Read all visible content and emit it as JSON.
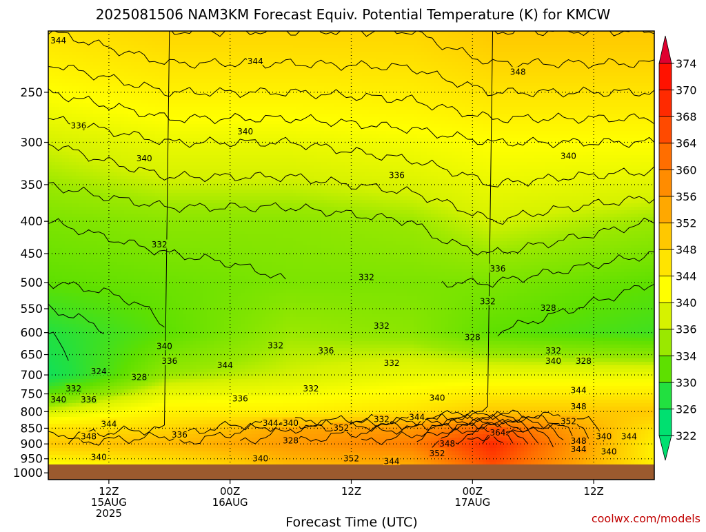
{
  "chart_data": {
    "type": "heatmap",
    "title": "2025081506 NAM3KM Forecast Equiv. Potential Temperature (K) for KMCW",
    "xlabel": "Forecast Time (UTC)",
    "credit": "coolwx.com/models",
    "x_range_hours": [
      6,
      66
    ],
    "x_ticks": [
      {
        "hour": 12,
        "lines": [
          "12Z",
          "15AUG",
          "2025"
        ]
      },
      {
        "hour": 24,
        "lines": [
          "00Z",
          "16AUG"
        ]
      },
      {
        "hour": 36,
        "lines": [
          "12Z"
        ]
      },
      {
        "hour": 48,
        "lines": [
          "00Z",
          "17AUG"
        ]
      },
      {
        "hour": 60,
        "lines": [
          "12Z"
        ]
      }
    ],
    "y_axis": {
      "scale": "log",
      "range_hPa": [
        1025,
        200
      ],
      "ticks": [
        250,
        300,
        350,
        400,
        450,
        500,
        550,
        600,
        650,
        700,
        750,
        800,
        850,
        900,
        950,
        1000
      ]
    },
    "surface_pressure_hPa": 970,
    "colorbar": {
      "ticks": [
        322,
        326,
        330,
        334,
        336,
        340,
        344,
        348,
        352,
        356,
        360,
        364,
        368,
        370,
        374
      ],
      "colors": [
        "#00e070",
        "#22e040",
        "#5ee000",
        "#9ae800",
        "#d6f200",
        "#ffff00",
        "#ffe400",
        "#ffc800",
        "#ffa800",
        "#ff8c00",
        "#ff6e00",
        "#ff4a00",
        "#ff2a00",
        "#ff1200",
        "#e00030"
      ],
      "cap_colors": {
        "low": "#00e070",
        "high": "#e00030"
      }
    },
    "profile_by_hour": [
      {
        "hour": 6,
        "theta_e": [
          344,
          336,
          332,
          330,
          326,
          324,
          336,
          344,
          348,
          340
        ]
      },
      {
        "hour": 18,
        "theta_e": [
          346,
          338,
          333,
          331,
          330,
          334,
          342,
          346,
          350,
          344
        ]
      },
      {
        "hour": 30,
        "theta_e": [
          346,
          338,
          333,
          332,
          334,
          336,
          342,
          352,
          354,
          350
        ]
      },
      {
        "hour": 42,
        "theta_e": [
          346,
          339,
          334,
          332,
          333,
          338,
          344,
          354,
          358,
          352
        ]
      },
      {
        "hour": 50,
        "theta_e": [
          348,
          340,
          336,
          332,
          330,
          338,
          348,
          362,
          368,
          364
        ]
      },
      {
        "hour": 66,
        "theta_e": [
          348,
          340,
          334,
          330,
          328,
          338,
          348,
          344,
          342,
          342
        ]
      }
    ],
    "profile_levels_hPa": [
      200,
      300,
      400,
      500,
      600,
      700,
      800,
      850,
      900,
      965
    ],
    "contour_labels": [
      {
        "text": "344",
        "hour": 7.0,
        "p": 207
      },
      {
        "text": "344",
        "hour": 26.5,
        "p": 223
      },
      {
        "text": "348",
        "hour": 52.5,
        "p": 232
      },
      {
        "text": "336",
        "hour": 9.0,
        "p": 282
      },
      {
        "text": "340",
        "hour": 25.5,
        "p": 288
      },
      {
        "text": "340",
        "hour": 15.5,
        "p": 318
      },
      {
        "text": "340",
        "hour": 57.5,
        "p": 315
      },
      {
        "text": "336",
        "hour": 40.5,
        "p": 338
      },
      {
        "text": "332",
        "hour": 17.0,
        "p": 435
      },
      {
        "text": "336",
        "hour": 50.5,
        "p": 475
      },
      {
        "text": "332",
        "hour": 37.5,
        "p": 490
      },
      {
        "text": "332",
        "hour": 49.5,
        "p": 535
      },
      {
        "text": "328",
        "hour": 55.5,
        "p": 548
      },
      {
        "text": "332",
        "hour": 39.0,
        "p": 585
      },
      {
        "text": "328",
        "hour": 48.0,
        "p": 610
      },
      {
        "text": "340",
        "hour": 17.5,
        "p": 630
      },
      {
        "text": "332",
        "hour": 28.5,
        "p": 628
      },
      {
        "text": "336",
        "hour": 33.5,
        "p": 640
      },
      {
        "text": "332",
        "hour": 56.0,
        "p": 640
      },
      {
        "text": "336",
        "hour": 18.0,
        "p": 665
      },
      {
        "text": "344",
        "hour": 23.5,
        "p": 675
      },
      {
        "text": "332",
        "hour": 40.0,
        "p": 670
      },
      {
        "text": "340",
        "hour": 56.0,
        "p": 665
      },
      {
        "text": "328",
        "hour": 59.0,
        "p": 665
      },
      {
        "text": "324",
        "hour": 11.0,
        "p": 690
      },
      {
        "text": "328",
        "hour": 15.0,
        "p": 705
      },
      {
        "text": "332",
        "hour": 8.5,
        "p": 735
      },
      {
        "text": "332",
        "hour": 32.0,
        "p": 735
      },
      {
        "text": "344",
        "hour": 58.5,
        "p": 740
      },
      {
        "text": "340",
        "hour": 7.0,
        "p": 765
      },
      {
        "text": "336",
        "hour": 10.0,
        "p": 765
      },
      {
        "text": "336",
        "hour": 25.0,
        "p": 762
      },
      {
        "text": "340",
        "hour": 44.5,
        "p": 760
      },
      {
        "text": "348",
        "hour": 58.5,
        "p": 785
      },
      {
        "text": "332",
        "hour": 39.0,
        "p": 822
      },
      {
        "text": "344",
        "hour": 42.5,
        "p": 816
      },
      {
        "text": "344",
        "hour": 12.0,
        "p": 836
      },
      {
        "text": "344",
        "hour": 28.0,
        "p": 833
      },
      {
        "text": "340",
        "hour": 30.0,
        "p": 833
      },
      {
        "text": "352",
        "hour": 57.5,
        "p": 828
      },
      {
        "text": "352",
        "hour": 35.0,
        "p": 848
      },
      {
        "text": "336",
        "hour": 19.0,
        "p": 870
      },
      {
        "text": "348",
        "hour": 10.0,
        "p": 875
      },
      {
        "text": "364",
        "hour": 50.5,
        "p": 863
      },
      {
        "text": "340",
        "hour": 61.0,
        "p": 875
      },
      {
        "text": "344",
        "hour": 63.5,
        "p": 875
      },
      {
        "text": "328",
        "hour": 30.0,
        "p": 888
      },
      {
        "text": "348",
        "hour": 58.5,
        "p": 890
      },
      {
        "text": "348",
        "hour": 45.5,
        "p": 898
      },
      {
        "text": "344",
        "hour": 58.5,
        "p": 917
      },
      {
        "text": "340",
        "hour": 11.0,
        "p": 943
      },
      {
        "text": "340",
        "hour": 27.0,
        "p": 948
      },
      {
        "text": "352",
        "hour": 36.0,
        "p": 948
      },
      {
        "text": "344",
        "hour": 40.0,
        "p": 958
      },
      {
        "text": "352",
        "hour": 44.5,
        "p": 930
      },
      {
        "text": "340",
        "hour": 61.5,
        "p": 925
      }
    ]
  }
}
